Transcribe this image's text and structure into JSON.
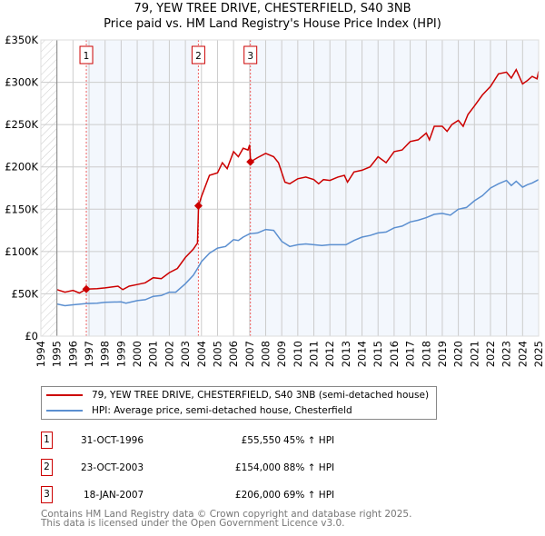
{
  "title_line1": "79, YEW TREE DRIVE, CHESTERFIELD, S40 3NB",
  "title_line2": "Price paid vs. HM Land Registry's House Price Index (HPI)",
  "chart_data": {
    "type": "line",
    "xlim": [
      1994,
      2025
    ],
    "ylim": [
      0,
      350000
    ],
    "x_ticks": [
      1994,
      1995,
      1996,
      1997,
      1998,
      1999,
      2000,
      2001,
      2002,
      2003,
      2004,
      2005,
      2006,
      2007,
      2008,
      2009,
      2010,
      2011,
      2012,
      2013,
      2014,
      2015,
      2016,
      2017,
      2018,
      2019,
      2020,
      2021,
      2022,
      2023,
      2024,
      2025
    ],
    "y_ticks": [
      0,
      50000,
      100000,
      150000,
      200000,
      250000,
      300000,
      350000
    ],
    "y_tick_labels": [
      "£0",
      "£50K",
      "£100K",
      "£150K",
      "£200K",
      "£250K",
      "£300K",
      "£350K"
    ],
    "grid": true,
    "series": [
      {
        "name": "79, YEW TREE DRIVE, CHESTERFIELD, S40 3NB (semi-detached house)",
        "color": "#cc0000",
        "x": [
          1995,
          1995.5,
          1996,
          1996.4,
          1996.83,
          1997.5,
          1998,
          1998.8,
          1999.1,
          1999.5,
          2000,
          2000.5,
          2001,
          2001.5,
          2002,
          2002.5,
          2003,
          2003.5,
          2003.75,
          2003.82,
          2004,
          2004.5,
          2005,
          2005.3,
          2005.6,
          2006,
          2006.3,
          2006.6,
          2006.9,
          2007.0,
          2007.06,
          2007.5,
          2008,
          2008.5,
          2008.8,
          2009.2,
          2009.5,
          2010,
          2010.5,
          2011,
          2011.3,
          2011.6,
          2012,
          2012.5,
          2012.9,
          2013.1,
          2013.5,
          2014,
          2014.5,
          2015,
          2015.5,
          2016,
          2016.5,
          2017,
          2017.5,
          2018,
          2018.2,
          2018.5,
          2019,
          2019.3,
          2019.6,
          2020,
          2020.3,
          2020.6,
          2021,
          2021.5,
          2022,
          2022.5,
          2023,
          2023.3,
          2023.6,
          2024,
          2024.3,
          2024.6,
          2024.9,
          2025
        ],
        "y": [
          55000,
          52000,
          54000,
          51000,
          55550,
          56000,
          57000,
          59000,
          55000,
          59000,
          61000,
          63000,
          69000,
          68000,
          75000,
          80000,
          93000,
          103000,
          110000,
          154000,
          165000,
          190000,
          193000,
          205000,
          198000,
          218000,
          212000,
          222000,
          220000,
          226000,
          206000,
          211000,
          216000,
          212000,
          205000,
          182000,
          180000,
          186000,
          188000,
          185000,
          180000,
          185000,
          184000,
          188000,
          190000,
          182000,
          194000,
          196000,
          200000,
          212000,
          205000,
          218000,
          220000,
          230000,
          232000,
          240000,
          232000,
          248000,
          248000,
          242000,
          250000,
          255000,
          248000,
          262000,
          272000,
          285000,
          295000,
          310000,
          312000,
          305000,
          315000,
          298000,
          302000,
          307000,
          304000,
          313000
        ]
      },
      {
        "name": "HPI: Average price, semi-detached house, Chesterfield",
        "color": "#5b8fd0",
        "x": [
          1995,
          1995.5,
          1996,
          1996.83,
          1997.5,
          1998,
          1999,
          1999.3,
          2000,
          2000.5,
          2001,
          2001.5,
          2002,
          2002.4,
          2003,
          2003.5,
          2003.82,
          2004,
          2004.5,
          2005,
          2005.5,
          2006,
          2006.3,
          2006.6,
          2007,
          2007.5,
          2008,
          2008.5,
          2009,
          2009.5,
          2010,
          2010.5,
          2011,
          2011.5,
          2012,
          2012.5,
          2013,
          2013.5,
          2014,
          2014.5,
          2015,
          2015.5,
          2016,
          2016.5,
          2017,
          2017.5,
          2018,
          2018.5,
          2019,
          2019.5,
          2020,
          2020.5,
          2021,
          2021.5,
          2022,
          2022.5,
          2023,
          2023.3,
          2023.6,
          2024,
          2024.3,
          2024.6,
          2025
        ],
        "y": [
          38000,
          36000,
          37000,
          38500,
          39000,
          40000,
          40500,
          39000,
          42000,
          43000,
          47000,
          48000,
          52000,
          52000,
          62000,
          72000,
          82000,
          88000,
          98000,
          104000,
          106000,
          114000,
          113000,
          117000,
          121000,
          122000,
          126000,
          125000,
          112000,
          106000,
          108000,
          109000,
          108000,
          107000,
          108000,
          108000,
          108000,
          113000,
          117000,
          119000,
          122000,
          123000,
          128000,
          130000,
          135000,
          137000,
          140000,
          144000,
          145000,
          143000,
          150000,
          152000,
          160000,
          166000,
          175000,
          180000,
          184000,
          178000,
          183000,
          176000,
          179000,
          181000,
          185000
        ]
      }
    ],
    "sales": [
      {
        "label": "1",
        "x": 1996.83,
        "y": 55550
      },
      {
        "label": "2",
        "x": 2003.81,
        "y": 154000
      },
      {
        "label": "3",
        "x": 2007.05,
        "y": 206000
      }
    ]
  },
  "legend": {
    "property": "79, YEW TREE DRIVE, CHESTERFIELD, S40 3NB (semi-detached house)",
    "hpi": "HPI: Average price, semi-detached house, Chesterfield"
  },
  "transactions": [
    {
      "num": "1",
      "date": "31-OCT-1996",
      "price": "£55,550",
      "hpi": "45% ↑ HPI"
    },
    {
      "num": "2",
      "date": "23-OCT-2003",
      "price": "£154,000",
      "hpi": "88% ↑ HPI"
    },
    {
      "num": "3",
      "date": "18-JAN-2007",
      "price": "£206,000",
      "hpi": "69% ↑ HPI"
    }
  ],
  "footer": {
    "line1": "Contains HM Land Registry data © Crown copyright and database right 2025.",
    "line2": "This data is licensed under the Open Government Licence v3.0."
  }
}
